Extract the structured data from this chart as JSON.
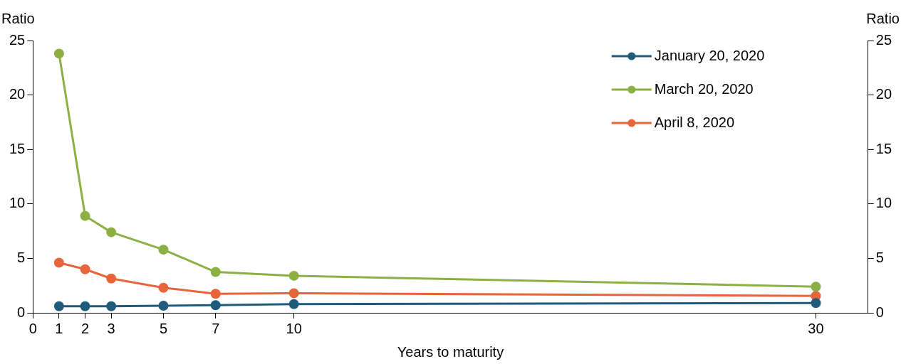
{
  "chart_data": {
    "type": "line",
    "xlabel": "Years to maturity",
    "ylabel": "Ratio",
    "y2label": "Ratio",
    "x": [
      1,
      2,
      3,
      5,
      7,
      10,
      30
    ],
    "xlim": [
      0,
      32
    ],
    "xticks": [
      0,
      1,
      2,
      3,
      5,
      7,
      10,
      30
    ],
    "ylim": [
      0,
      25
    ],
    "yticks": [
      0,
      5,
      10,
      15,
      20,
      25
    ],
    "y2lim": [
      0,
      25
    ],
    "y2ticks": [
      0,
      5,
      10,
      15,
      20,
      25
    ],
    "series": [
      {
        "name": "January 20, 2020",
        "color": "#1f5b7a",
        "values": [
          0.6,
          0.6,
          0.6,
          0.65,
          0.7,
          0.8,
          0.9
        ]
      },
      {
        "name": "March 20, 2020",
        "color": "#8cb043",
        "values": [
          23.8,
          8.9,
          7.4,
          5.8,
          3.75,
          3.4,
          2.4
        ]
      },
      {
        "name": "April 8, 2020",
        "color": "#e8643a",
        "values": [
          4.6,
          4.0,
          3.15,
          2.3,
          1.75,
          1.8,
          1.55
        ]
      }
    ],
    "marker": "circle",
    "line_style": "solid",
    "legend": "top right",
    "grid": false
  }
}
